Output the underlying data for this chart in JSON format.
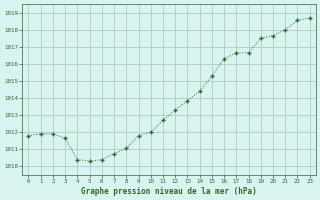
{
  "x": [
    0,
    1,
    2,
    3,
    4,
    5,
    6,
    7,
    8,
    9,
    10,
    11,
    12,
    13,
    14,
    15,
    16,
    17,
    18,
    19,
    20,
    21,
    22,
    23
  ],
  "y": [
    1011.8,
    1011.9,
    1011.9,
    1011.65,
    1010.4,
    1010.3,
    1010.4,
    1010.75,
    1011.05,
    1011.8,
    1012.0,
    1012.7,
    1013.3,
    1013.85,
    1014.4,
    1015.3,
    1016.3,
    1016.65,
    1016.65,
    1017.5,
    1017.65,
    1018.0,
    1018.55,
    1018.7
  ],
  "line_color": "#2d6a2d",
  "marker_color": "#2d6a2d",
  "bg_color": "#d8f4f0",
  "grid_color": "#b8c8c4",
  "xlabel": "Graphe pression niveau de la mer (hPa)",
  "xlabel_color": "#2d6a2d",
  "tick_color": "#2d6a2d",
  "ylim": [
    1009.5,
    1019.5
  ],
  "yticks": [
    1010,
    1011,
    1012,
    1013,
    1014,
    1015,
    1016,
    1017,
    1018,
    1019
  ],
  "xlim": [
    -0.5,
    23.5
  ],
  "xticks": [
    0,
    1,
    2,
    3,
    4,
    5,
    6,
    7,
    8,
    9,
    10,
    11,
    12,
    13,
    14,
    15,
    16,
    17,
    18,
    19,
    20,
    21,
    22,
    23
  ]
}
